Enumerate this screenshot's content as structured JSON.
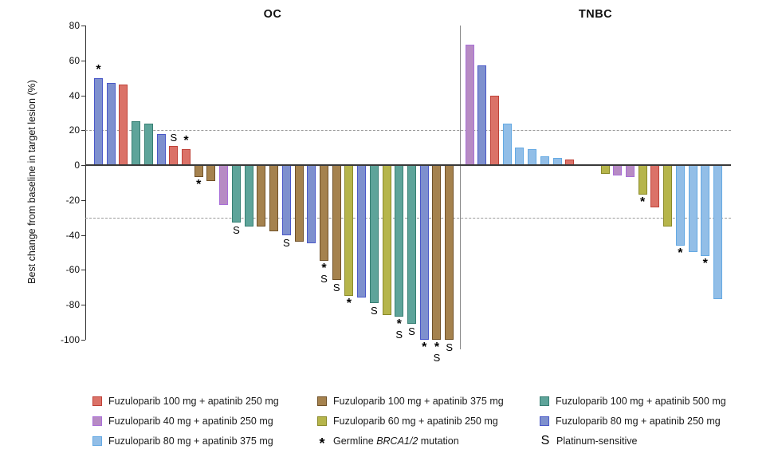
{
  "chart_data": {
    "type": "bar",
    "subtype": "waterfall",
    "title": "",
    "ylabel": "Best change from baseline in target lesion (%)",
    "ylim": [
      -100,
      80
    ],
    "yticks": [
      80,
      60,
      40,
      20,
      0,
      -20,
      -40,
      -60,
      -80,
      -100
    ],
    "reference_lines": [
      20,
      -30
    ],
    "grid": false,
    "annotations_meaning": {
      "*": "Germline BRCA1/2 mutation",
      "S": "Platinum-sensitive"
    },
    "groups": {
      "f100_a250": {
        "label": "Fuzuloparib 100 mg + apatinib 250 mg",
        "fill": "#DB7268",
        "border": "#BF4138"
      },
      "f100_a375": {
        "label": "Fuzuloparib 100 mg + apatinib 375 mg",
        "fill": "#A5824E",
        "border": "#705128"
      },
      "f100_a500": {
        "label": "Fuzuloparib 100 mg + apatinib 500 mg",
        "fill": "#5EA49A",
        "border": "#377F73"
      },
      "f40_a250": {
        "label": "Fuzuloparib 40 mg + apatinib 250 mg",
        "fill": "#B78BC4",
        "border": "#A96FD8"
      },
      "f60_a250": {
        "label": "Fuzuloparib 60 mg + apatinib 250 mg",
        "fill": "#B6B54B",
        "border": "#8A8A2A"
      },
      "f80_a250": {
        "label": "Fuzuloparib 80 mg + apatinib 250 mg",
        "fill": "#7E90CE",
        "border": "#4A58C8"
      },
      "f80_a375": {
        "label": "Fuzuloparib 80 mg + apatinib 375 mg",
        "fill": "#92BEE7",
        "border": "#64A9E3"
      }
    },
    "panels": [
      {
        "name": "OC",
        "segments": [
          {
            "bars": [
              {
                "value": 50,
                "group": "f80_a250",
                "marks": "*"
              },
              {
                "value": 47,
                "group": "f80_a250",
                "marks": ""
              },
              {
                "value": 46,
                "group": "f100_a250",
                "marks": ""
              },
              {
                "value": 25,
                "group": "f100_a500",
                "marks": ""
              },
              {
                "value": 24,
                "group": "f100_a500",
                "marks": ""
              },
              {
                "value": 18,
                "group": "f80_a250",
                "marks": ""
              },
              {
                "value": 11,
                "group": "f100_a250",
                "marks": "S"
              },
              {
                "value": 9,
                "group": "f100_a250",
                "marks": "*"
              },
              {
                "value": -7,
                "group": "f100_a375",
                "marks": "*"
              },
              {
                "value": -9,
                "group": "f100_a375",
                "marks": ""
              },
              {
                "value": -23,
                "group": "f40_a250",
                "marks": ""
              },
              {
                "value": -33,
                "group": "f100_a500",
                "marks": "S"
              },
              {
                "value": -35,
                "group": "f100_a500",
                "marks": ""
              },
              {
                "value": -35,
                "group": "f100_a375",
                "marks": ""
              },
              {
                "value": -38,
                "group": "f100_a375",
                "marks": ""
              },
              {
                "value": -40,
                "group": "f80_a250",
                "marks": "S"
              },
              {
                "value": -44,
                "group": "f100_a375",
                "marks": ""
              },
              {
                "value": -45,
                "group": "f80_a250",
                "marks": ""
              },
              {
                "value": -55,
                "group": "f100_a375",
                "marks": "*S"
              },
              {
                "value": -66,
                "group": "f100_a375",
                "marks": "S"
              },
              {
                "value": -75,
                "group": "f60_a250",
                "marks": "*"
              },
              {
                "value": -76,
                "group": "f80_a250",
                "marks": ""
              },
              {
                "value": -79,
                "group": "f100_a500",
                "marks": "S"
              },
              {
                "value": -86,
                "group": "f60_a250",
                "marks": ""
              },
              {
                "value": -87,
                "group": "f100_a500",
                "marks": "*S"
              },
              {
                "value": -91,
                "group": "f100_a500",
                "marks": "S"
              },
              {
                "value": -100,
                "group": "f80_a250",
                "marks": "*"
              },
              {
                "value": -100,
                "group": "f100_a375",
                "marks": "*S"
              },
              {
                "value": -100,
                "group": "f100_a375",
                "marks": "S"
              }
            ]
          }
        ]
      },
      {
        "name": "TNBC",
        "segments": [
          {
            "bars": [
              {
                "value": 69,
                "group": "f40_a250",
                "marks": ""
              },
              {
                "value": 57,
                "group": "f80_a250",
                "marks": ""
              },
              {
                "value": 40,
                "group": "f100_a250",
                "marks": ""
              },
              {
                "value": 24,
                "group": "f80_a375",
                "marks": ""
              },
              {
                "value": 10,
                "group": "f80_a375",
                "marks": ""
              },
              {
                "value": 9,
                "group": "f80_a375",
                "marks": ""
              },
              {
                "value": 5,
                "group": "f80_a375",
                "marks": ""
              },
              {
                "value": 4,
                "group": "f80_a375",
                "marks": ""
              },
              {
                "value": 3,
                "group": "f100_a250",
                "marks": ""
              }
            ]
          },
          {
            "bars": [
              {
                "value": -5,
                "group": "f60_a250",
                "marks": ""
              },
              {
                "value": -6,
                "group": "f40_a250",
                "marks": ""
              },
              {
                "value": -7,
                "group": "f40_a250",
                "marks": ""
              },
              {
                "value": -17,
                "group": "f60_a250",
                "marks": "*"
              },
              {
                "value": -24,
                "group": "f100_a250",
                "marks": ""
              },
              {
                "value": -35,
                "group": "f60_a250",
                "marks": ""
              },
              {
                "value": -46,
                "group": "f80_a375",
                "marks": "*"
              },
              {
                "value": -50,
                "group": "f80_a375",
                "marks": ""
              },
              {
                "value": -52,
                "group": "f80_a375",
                "marks": "*"
              },
              {
                "value": -77,
                "group": "f80_a375",
                "marks": ""
              }
            ]
          }
        ]
      }
    ]
  },
  "legend": {
    "columns": [
      [
        {
          "type": "group",
          "group": "f100_a250"
        },
        {
          "type": "group",
          "group": "f40_a250"
        },
        {
          "type": "group",
          "group": "f80_a375"
        }
      ],
      [
        {
          "type": "group",
          "group": "f100_a375"
        },
        {
          "type": "group",
          "group": "f60_a250"
        },
        {
          "type": "symbol",
          "symbol": "*",
          "label_pre": "Germline ",
          "label_italic": "BRCA1/2",
          "label_post": " mutation"
        }
      ],
      [
        {
          "type": "group",
          "group": "f100_a500"
        },
        {
          "type": "group",
          "group": "f80_a250"
        },
        {
          "type": "symbol",
          "symbol": "S",
          "label": "Platinum-sensitive"
        }
      ]
    ]
  }
}
